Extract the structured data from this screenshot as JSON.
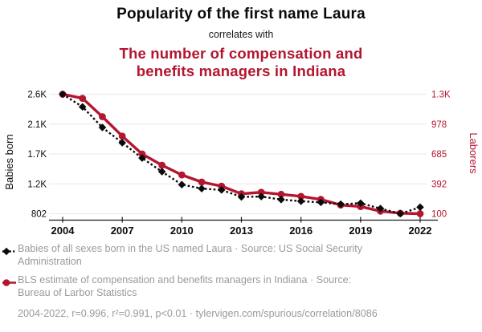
{
  "header": {
    "title": "Popularity of the first name Laura",
    "connector": "correlates with",
    "subtitle": "The number of compensation and\nbenefits managers in Indiana"
  },
  "colors": {
    "accent_red": "#b4152f",
    "text_dark": "#0b0b0b",
    "text_gray": "#9a9a9a",
    "gridline": "#ececec",
    "axis_line": "#1a1a1a"
  },
  "chart_data": {
    "type": "line",
    "x": [
      2004,
      2005,
      2006,
      2007,
      2008,
      2009,
      2010,
      2011,
      2012,
      2013,
      2014,
      2015,
      2016,
      2017,
      2018,
      2019,
      2020,
      2021,
      2022
    ],
    "x_ticks": [
      "2004",
      "2007",
      "2010",
      "2013",
      "2016",
      "2019",
      "2022"
    ],
    "grid": "horizontal",
    "left_axis": {
      "label": "Babies born",
      "ticks": [
        "2.6K",
        "2.1K",
        "1.7K",
        "1.2K",
        "802"
      ],
      "min": 802,
      "max": 2600,
      "color": "#0b0b0b"
    },
    "right_axis": {
      "label": "Laborers",
      "ticks": [
        "1.3K",
        "978",
        "685",
        "392",
        "100"
      ],
      "min": 100,
      "max": 1270,
      "color": "#b4152f"
    },
    "series": [
      {
        "name": "Babies of all sexes born in the US named Laura",
        "axis": "left",
        "color": "#0b0b0b",
        "style": "dashed",
        "marker": "diamond",
        "draw_order": 2,
        "values": [
          2600,
          2410,
          2100,
          1870,
          1640,
          1435,
          1240,
          1180,
          1160,
          1055,
          1060,
          1015,
          990,
          973,
          945,
          960,
          880,
          802,
          900
        ]
      },
      {
        "name": "BLS estimate of compensation and benefits managers in Indiana",
        "axis": "right",
        "color": "#b4152f",
        "style": "solid",
        "marker": "circle",
        "draw_order": 1,
        "values": [
          1270,
          1230,
          1050,
          860,
          685,
          575,
          480,
          410,
          370,
          295,
          310,
          290,
          270,
          240,
          185,
          170,
          125,
          105,
          100
        ]
      }
    ]
  },
  "legend": {
    "items": [
      {
        "label": "Babies of all sexes born in the US named Laura · Source: US Social Security\nAdministration"
      },
      {
        "label": "BLS estimate of compensation and benefits managers in Indiana · Source:\nBureau of Larbor Statistics"
      }
    ]
  },
  "footer": {
    "text": "2004-2022, r=0.996, r²=0.991, p<0.01 · tylervigen.com/spurious/correlation/8086"
  }
}
